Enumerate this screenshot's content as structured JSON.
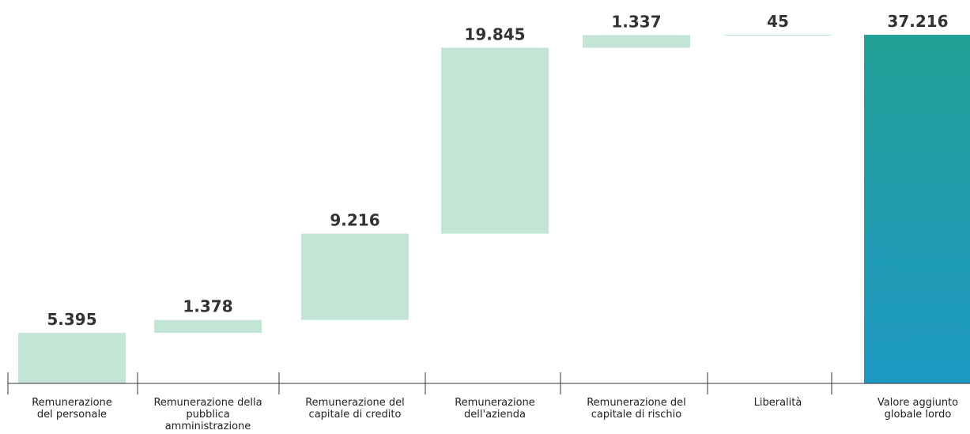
{
  "chart_data": {
    "type": "bar",
    "subtype": "waterfall",
    "categories": [
      [
        "Remunerazione",
        "del personale"
      ],
      [
        "Remunerazione della",
        "pubblica",
        "amministrazione"
      ],
      [
        "Remunerazione del",
        "capitale di credito"
      ],
      [
        "Remunerazione",
        "dell'azienda"
      ],
      [
        "Remunerazione del",
        "capitale di rischio"
      ],
      [
        "Liberalità"
      ],
      [
        "Valore aggiunto",
        "globale lordo"
      ]
    ],
    "values": [
      5395,
      1378,
      9216,
      19845,
      1337,
      45,
      37216
    ],
    "value_labels": [
      "5.395",
      "1.378",
      "9.216",
      "19.845",
      "1.337",
      "45",
      "37.216"
    ],
    "bar_kinds": [
      "step",
      "step",
      "step",
      "step",
      "step",
      "step",
      "total"
    ],
    "ylim": [
      0,
      37216
    ],
    "colors": {
      "step": "#c3e5d5",
      "total_top": "#21a096",
      "total_bottom": "#1d98c3",
      "axis": "#333333",
      "value_text": "#333333",
      "category_text": "#222222"
    },
    "grid": false,
    "legend": "none"
  }
}
